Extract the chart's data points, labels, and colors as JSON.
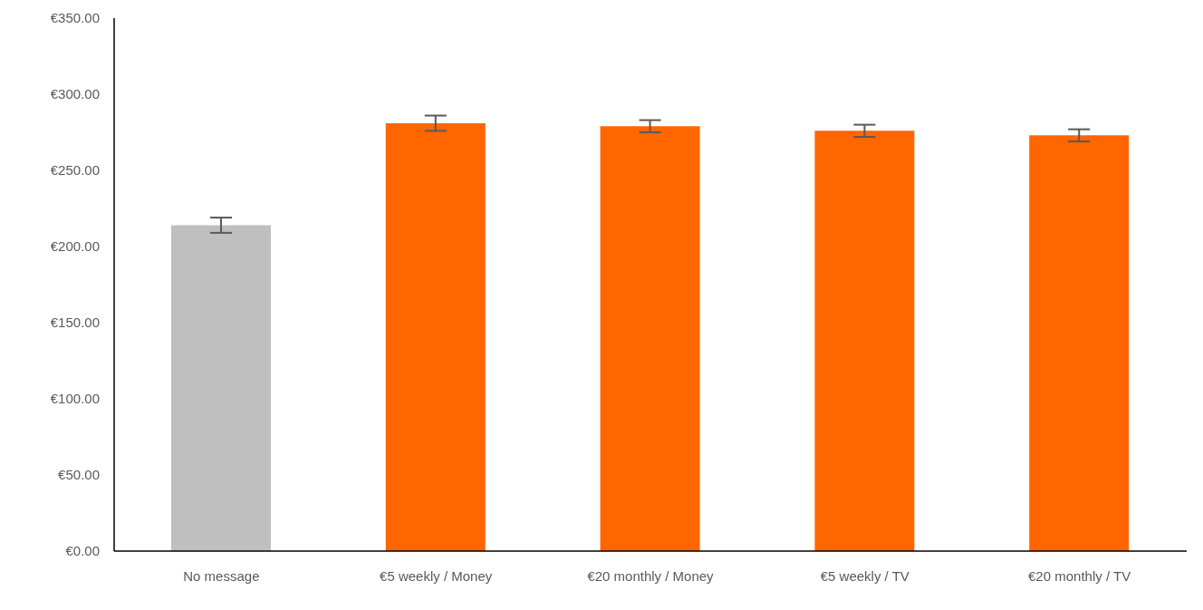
{
  "chart_data": {
    "type": "bar",
    "categories": [
      "No message",
      "€5 weekly / Money",
      "€20 monthly / Money",
      "€5 weekly / TV",
      "€20 monthly / TV"
    ],
    "values": [
      214,
      281,
      279,
      276,
      273
    ],
    "colors": [
      "#bfbfbf",
      "#ff6600",
      "#ff6600",
      "#ff6600",
      "#ff6600"
    ],
    "errors": [
      5,
      5,
      4,
      4,
      4
    ],
    "ylim": [
      0,
      350
    ],
    "yticks": [
      {
        "value": 0,
        "label": "€0.00"
      },
      {
        "value": 50,
        "label": "€50.00"
      },
      {
        "value": 100,
        "label": "€100.00"
      },
      {
        "value": 150,
        "label": "€150.00"
      },
      {
        "value": 200,
        "label": "€200.00"
      },
      {
        "value": 250,
        "label": "€250.00"
      },
      {
        "value": 300,
        "label": "€300.00"
      },
      {
        "value": 350,
        "label": "€350.00"
      }
    ],
    "grid": false,
    "legend": false
  }
}
